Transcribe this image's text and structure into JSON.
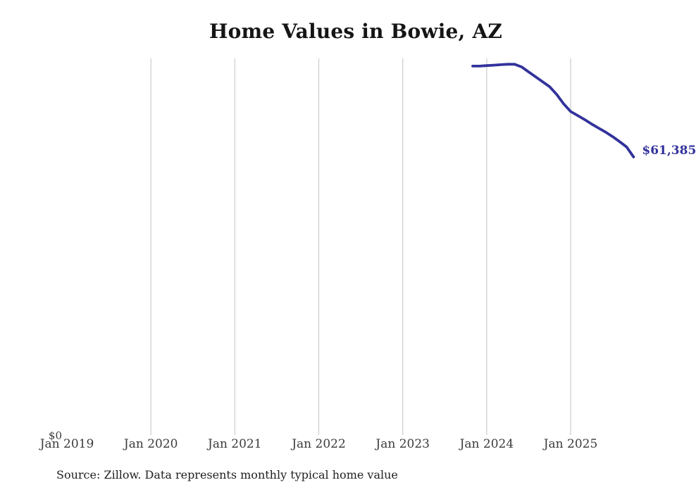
{
  "colors": {
    "line": "#32329c",
    "grid": "#cbcbcb",
    "title_text": "#151515",
    "axis_text": "#3c3c3c",
    "end_label_text": "#32329c"
  },
  "chart_data": {
    "type": "line",
    "title": "Home Values in Bowie, AZ",
    "xlabel": "",
    "ylabel": "",
    "x_tick_labels": [
      "Jan 2019",
      "Jan 2020",
      "Jan 2021",
      "Jan 2022",
      "Jan 2023",
      "Jan 2024",
      "Jan 2025"
    ],
    "gridline_years": [
      2020,
      2021,
      2022,
      2023,
      2024,
      2025
    ],
    "y_tick_labels": [
      "$0"
    ],
    "ylim": [
      0,
      83300
    ],
    "grid": "vertical-gridlines-only",
    "legend": "none",
    "end_label": "$61,385",
    "series": [
      {
        "name": "Monthly typical home value",
        "x": [
          "2023-11",
          "2023-12",
          "2024-01",
          "2024-02",
          "2024-03",
          "2024-04",
          "2024-05",
          "2024-06",
          "2024-07",
          "2024-08",
          "2024-09",
          "2024-10",
          "2024-11",
          "2024-12",
          "2025-01",
          "2025-02",
          "2025-03",
          "2025-04",
          "2025-05",
          "2025-06",
          "2025-07",
          "2025-08",
          "2025-09",
          "2025-10"
        ],
        "values": [
          81600,
          81600,
          81700,
          81800,
          81900,
          82000,
          82000,
          81400,
          80300,
          79200,
          78100,
          77000,
          75300,
          73200,
          71500,
          70600,
          69700,
          68700,
          67800,
          66900,
          65900,
          64800,
          63600,
          61385
        ]
      }
    ],
    "source": "Source: Zillow. Data represents monthly typical home value"
  }
}
